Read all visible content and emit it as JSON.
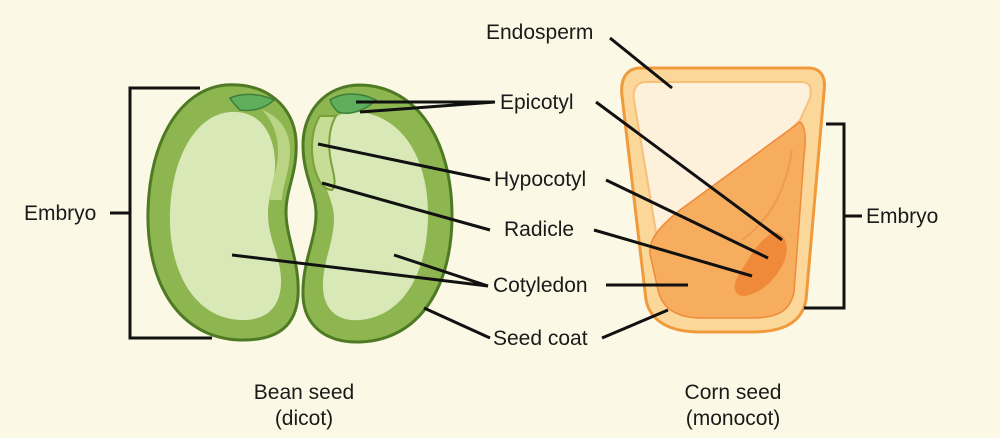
{
  "labels": {
    "endosperm": "Endosperm",
    "epicotyl": "Epicotyl",
    "hypocotyl": "Hypocotyl",
    "radicle": "Radicle",
    "cotyledon": "Cotyledon",
    "seed_coat": "Seed coat",
    "embryo_left": "Embryo",
    "embryo_right": "Embryo"
  },
  "captions": {
    "bean_line1": "Bean seed",
    "bean_line2": "(dicot)",
    "corn_line1": "Corn seed",
    "corn_line2": "(monocot)"
  },
  "colors": {
    "background": "#fbf9e6",
    "bean_coat": "#8db550",
    "bean_coat_stroke": "#4f7a24",
    "bean_cotyledon": "#d8e8b6",
    "bean_leaf": "#5fae5c",
    "corn_coat": "#fbd79a",
    "corn_coat_stroke": "#f09a3c",
    "corn_endosperm": "#fdf1dc",
    "corn_embryo": "#f7ad5e",
    "corn_embryo_dark": "#ef8a3b"
  }
}
